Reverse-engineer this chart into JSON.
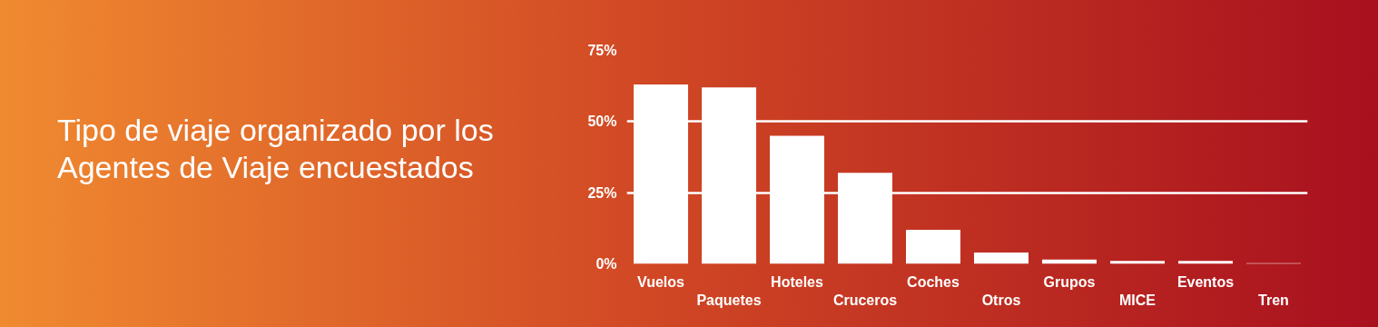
{
  "chart_data": {
    "type": "bar",
    "title": "Tipo de viaje organizado por los Agentes de Viaje encuestados",
    "categories": [
      "Vuelos",
      "Paquetes",
      "Hoteles",
      "Cruceros",
      "Coches",
      "Otros",
      "Grupos",
      "MICE",
      "Eventos",
      "Tren"
    ],
    "values": [
      63,
      62,
      45,
      32,
      12,
      4,
      1.5,
      1,
      1,
      0.2
    ],
    "color": "#ffffff",
    "ylim": [
      0,
      75
    ],
    "yticks": [
      {
        "value": 0,
        "label": "0%"
      },
      {
        "value": 25,
        "label": "25%"
      },
      {
        "value": 50,
        "label": "50%"
      },
      {
        "value": 75,
        "label": "75%"
      }
    ],
    "grid": "y"
  }
}
